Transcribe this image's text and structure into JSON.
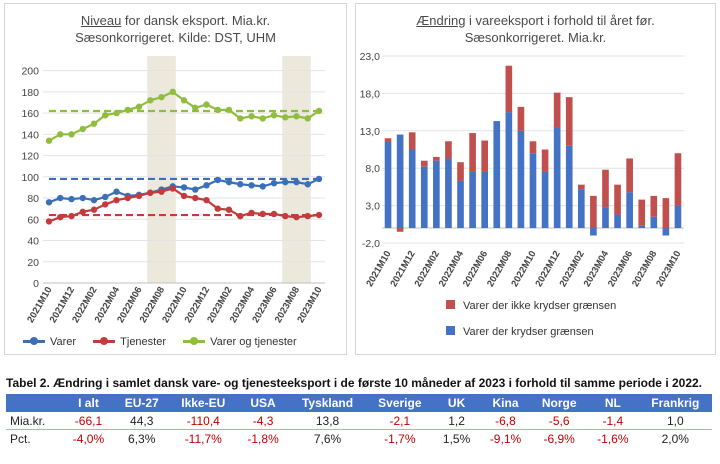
{
  "chart_data": [
    {
      "type": "line",
      "title_underlined": "Niveau",
      "title_rest": " for dansk eksport. Mia.kr.",
      "subtitle": "Sæsonkorrigeret. Kilde: DST, UHM",
      "categories": [
        "2021M10",
        "2021M11",
        "2021M12",
        "2022M01",
        "2022M02",
        "2022M03",
        "2022M04",
        "2022M05",
        "2022M06",
        "2022M07",
        "2022M08",
        "2022M09",
        "2022M10",
        "2022M11",
        "2022M12",
        "2023M01",
        "2023M02",
        "2023M03",
        "2023M04",
        "2023M05",
        "2023M06",
        "2023M07",
        "2023M08",
        "2023M09",
        "2023M10"
      ],
      "tick_labels": [
        "2021M10",
        "2021M12",
        "2022M02",
        "2022M04",
        "2022M06",
        "2022M08",
        "2022M10",
        "2022M12",
        "2023M02",
        "2023M04",
        "2023M06",
        "2023M08",
        "2023M10"
      ],
      "ylim": [
        0,
        210
      ],
      "yticks": [
        0,
        20,
        40,
        60,
        80,
        100,
        120,
        140,
        160,
        180,
        200
      ],
      "shaded_ranges": [
        [
          "2022M07",
          "2022M09"
        ],
        [
          "2023M07",
          "2023M09"
        ]
      ],
      "series": [
        {
          "name": "Varer",
          "color": "#3b6fb6",
          "values": [
            76,
            80,
            79,
            80,
            78,
            81,
            86,
            82,
            83,
            85,
            88,
            91,
            90,
            88,
            92,
            97,
            95,
            93,
            92,
            91,
            94,
            95,
            95,
            93,
            98
          ],
          "average": 98
        },
        {
          "name": "Tjenester",
          "color": "#c53b3b",
          "values": [
            58,
            62,
            63,
            67,
            69,
            74,
            78,
            80,
            82,
            85,
            86,
            89,
            82,
            80,
            78,
            70,
            69,
            63,
            66,
            65,
            65,
            63,
            62,
            63,
            64
          ],
          "average": 64
        },
        {
          "name": "Varer og tjenester",
          "color": "#8fbe3f",
          "values": [
            134,
            140,
            140,
            145,
            150,
            158,
            160,
            163,
            166,
            172,
            175,
            180,
            172,
            165,
            168,
            163,
            163,
            155,
            157,
            155,
            158,
            156,
            157,
            155,
            162
          ],
          "average": 162
        }
      ]
    },
    {
      "type": "bar",
      "stacked": true,
      "title_underlined": "Ændring",
      "title_rest": " i vareeksport i forhold til året før.",
      "subtitle": "Sæsonkorrigeret. Mia.kr.",
      "categories": [
        "2021M10",
        "2021M11",
        "2021M12",
        "2022M01",
        "2022M02",
        "2022M03",
        "2022M04",
        "2022M05",
        "2022M06",
        "2022M07",
        "2022M08",
        "2022M09",
        "2022M10",
        "2022M11",
        "2022M12",
        "2023M01",
        "2023M02",
        "2023M03",
        "2023M04",
        "2023M05",
        "2023M06",
        "2023M07",
        "2023M08",
        "2023M09",
        "2023M10"
      ],
      "tick_labels": [
        "2021M10",
        "2021M12",
        "2022M02",
        "2022M04",
        "2022M06",
        "2022M08",
        "2022M10",
        "2022M12",
        "2023M02",
        "2023M04",
        "2023M06",
        "2023M08",
        "2023M10"
      ],
      "ylim": [
        -2,
        23
      ],
      "yticks": [
        "-2,0",
        "3,0",
        "8,0",
        "13,0",
        "18,0",
        "23,0"
      ],
      "ytick_values": [
        -2,
        3,
        8,
        13,
        18,
        23
      ],
      "series": [
        {
          "name": "Varer der krydser grænsen",
          "color": "#4472c4",
          "values": [
            11.5,
            12.5,
            10.5,
            8.2,
            9.0,
            9.3,
            6.3,
            7.5,
            7.5,
            14.3,
            15.5,
            13.0,
            10.0,
            7.5,
            13.5,
            11.0,
            5.2,
            -1.0,
            2.8,
            1.8,
            4.8,
            0.3,
            1.5,
            -1.0,
            3.0
          ]
        },
        {
          "name": "Varer der ikke krydser grænsen",
          "color": "#c0504d",
          "values": [
            0.5,
            -0.5,
            2.3,
            0.8,
            0.5,
            2.3,
            2.5,
            5.2,
            4.2,
            0.0,
            6.2,
            3.2,
            1.6,
            3.0,
            4.6,
            6.5,
            0.6,
            4.3,
            5.0,
            4.0,
            4.5,
            3.5,
            2.8,
            4.0,
            7.0
          ]
        }
      ]
    }
  ],
  "table": {
    "caption": "Tabel 2. Ændring i samlet dansk vare- og tjenesteeksport i de første 10 måneder af 2023 i forhold til samme periode i 2022.",
    "headers": [
      "",
      "I alt",
      "EU-27",
      "Ikke-EU",
      "USA",
      "Tyskland",
      "Sverige",
      "UK",
      "Kina",
      "Norge",
      "NL",
      "Frankrig"
    ],
    "rows": [
      {
        "label": "Mia.kr.",
        "cells": [
          "-66,1",
          "44,3",
          "-110,4",
          "-4,3",
          "13,8",
          "-2,1",
          "1,2",
          "-6,8",
          "-5,6",
          "-1,4",
          "1,0"
        ]
      },
      {
        "label": "Pct.",
        "cells": [
          "-4,0%",
          "6,3%",
          "-11,7%",
          "-1,8%",
          "7,6%",
          "-1,7%",
          "1,5%",
          "-9,1%",
          "-6,9%",
          "-1,6%",
          "2,0%"
        ]
      }
    ]
  }
}
